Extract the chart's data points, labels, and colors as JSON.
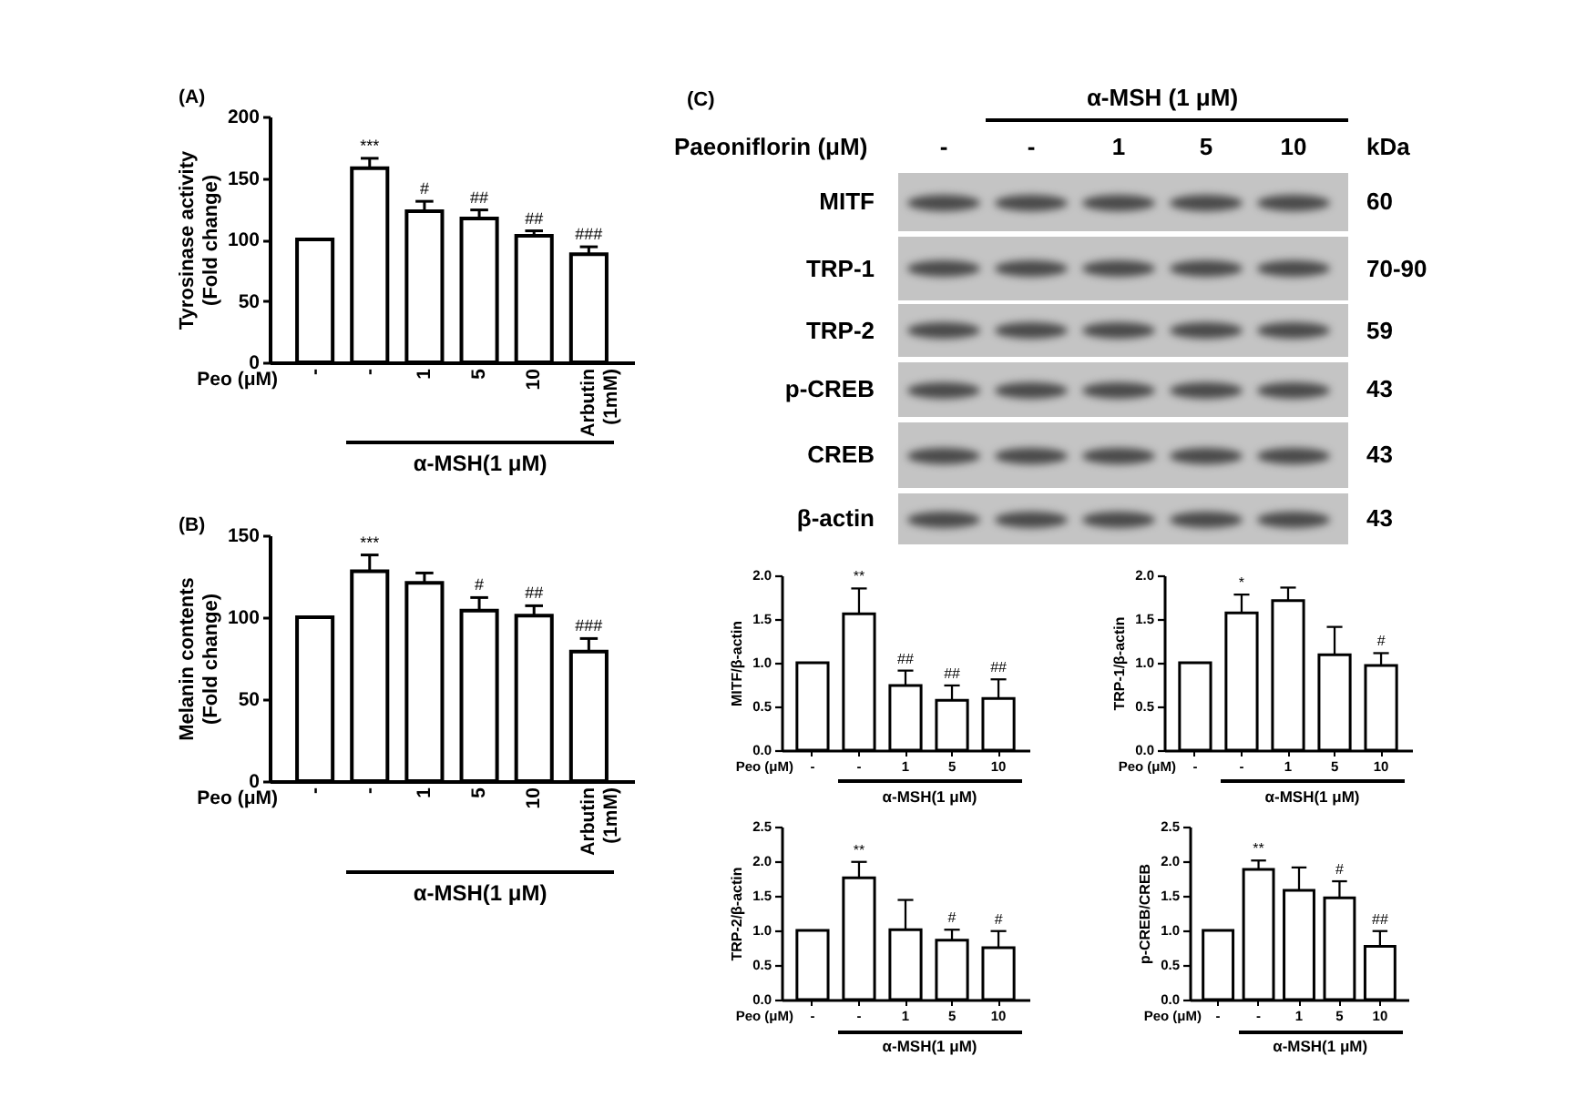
{
  "chart_data": [
    {
      "type": "bar",
      "title": "(A)",
      "ylabel": "Tyrosinase activity\n(Fold change)",
      "xlabel": "Peo (μM)",
      "annotations": [
        "α-MSH(1 μM)"
      ],
      "categories": [
        "-",
        "-",
        "1",
        "5",
        "10",
        "Arbutin\n(1mM)"
      ],
      "values": [
        100,
        158,
        123,
        117,
        103,
        88
      ],
      "errors": [
        null,
        [
          158,
          166
        ],
        [
          123,
          131
        ],
        [
          117,
          124
        ],
        [
          103,
          107
        ],
        [
          88,
          94
        ]
      ],
      "value_labels": [
        null,
        "***",
        "#",
        "##",
        "##",
        "###"
      ],
      "color": "#ffffff",
      "ylim": [
        0,
        200
      ],
      "yticks": [
        0,
        50,
        100,
        150,
        200
      ]
    },
    {
      "type": "bar",
      "title": "(B)",
      "ylabel": "Melanin contents\n(Fold change)",
      "xlabel": "Peo (μM)",
      "annotations": [
        "α-MSH(1 μM)"
      ],
      "categories": [
        "-",
        "-",
        "1",
        "5",
        "10",
        "Arbutin\n(1mM)"
      ],
      "values": [
        100,
        128,
        121,
        104,
        101,
        79
      ],
      "errors": [
        null,
        [
          128,
          138
        ],
        [
          121,
          127
        ],
        [
          104,
          112
        ],
        [
          101,
          107
        ],
        [
          79,
          87
        ]
      ],
      "value_labels": [
        null,
        "***",
        null,
        "#",
        "##",
        "###"
      ],
      "color": "#ffffff",
      "ylim": [
        0,
        150
      ],
      "yticks": [
        0,
        50,
        100,
        150
      ]
    },
    {
      "type": "other",
      "title": "(C)",
      "annotations": [
        "α-MSH (1 μM)",
        "Paeoniflorin (μM)",
        "-",
        "-",
        "1",
        "5",
        "10",
        "kDa",
        "MITF",
        "60",
        "TRP-1",
        "70-90",
        "TRP-2",
        "59",
        "p-CREB",
        "43",
        "CREB",
        "43",
        "β-actin",
        "43"
      ]
    },
    {
      "type": "bar",
      "ylabel": "MITF/β-actin",
      "xlabel": "Peo (μM)",
      "annotations": [
        "α-MSH(1 μM)"
      ],
      "categories": [
        "-",
        "-",
        "1",
        "5",
        "10"
      ],
      "values": [
        1.0,
        1.56,
        0.74,
        0.57,
        0.59
      ],
      "errors": [
        null,
        [
          1.56,
          1.85
        ],
        [
          0.74,
          0.91
        ],
        [
          0.57,
          0.74
        ],
        [
          0.59,
          0.81
        ]
      ],
      "value_labels": [
        null,
        "**",
        "##",
        "##",
        "##"
      ],
      "color": "#ffffff",
      "ylim": [
        0,
        2
      ],
      "yticks": [
        {
          "value": 0,
          "label": "0.0"
        },
        {
          "value": 0.5,
          "label": "0.5"
        },
        {
          "value": 1,
          "label": "1.0"
        },
        {
          "value": 1.5,
          "label": "1.5"
        },
        {
          "value": 2,
          "label": "2.0"
        }
      ]
    },
    {
      "type": "bar",
      "ylabel": "TRP-1/β-actin",
      "xlabel": "Peo (μM)",
      "annotations": [
        "α-MSH(1 μM)"
      ],
      "categories": [
        "-",
        "-",
        "1",
        "5",
        "10"
      ],
      "values": [
        1.0,
        1.57,
        1.71,
        1.09,
        0.97
      ],
      "errors": [
        null,
        [
          1.57,
          1.78
        ],
        [
          1.71,
          1.86
        ],
        [
          1.09,
          1.41
        ],
        [
          0.97,
          1.11
        ]
      ],
      "value_labels": [
        null,
        "*",
        null,
        null,
        "#"
      ],
      "color": "#ffffff",
      "ylim": [
        0,
        2
      ],
      "yticks": [
        {
          "value": 0,
          "label": "0.0"
        },
        {
          "value": 0.5,
          "label": "0.5"
        },
        {
          "value": 1,
          "label": "1.0"
        },
        {
          "value": 1.5,
          "label": "1.5"
        },
        {
          "value": 2,
          "label": "2.0"
        }
      ]
    },
    {
      "type": "bar",
      "ylabel": "TRP-2/β-actin",
      "xlabel": "Peo (μM)",
      "annotations": [
        "α-MSH(1 μM)"
      ],
      "categories": [
        "-",
        "-",
        "1",
        "5",
        "10"
      ],
      "values": [
        1.0,
        1.76,
        1.01,
        0.86,
        0.75
      ],
      "errors": [
        null,
        [
          1.76,
          1.99
        ],
        [
          1.01,
          1.44
        ],
        [
          0.86,
          1.01
        ],
        [
          0.75,
          0.99
        ]
      ],
      "value_labels": [
        null,
        "**",
        null,
        "#",
        "#"
      ],
      "color": "#ffffff",
      "ylim": [
        0,
        2.5
      ],
      "yticks": [
        {
          "value": 0,
          "label": "0.0"
        },
        {
          "value": 0.5,
          "label": "0.5"
        },
        {
          "value": 1,
          "label": "1.0"
        },
        {
          "value": 1.5,
          "label": "1.5"
        },
        {
          "value": 2,
          "label": "2.0"
        },
        {
          "value": 2.5,
          "label": "2.5"
        }
      ]
    },
    {
      "type": "bar",
      "ylabel": "p-CREB/CREB",
      "xlabel": "Peo (μM)",
      "annotations": [
        "α-MSH(1 μM)"
      ],
      "categories": [
        "-",
        "-",
        "1",
        "5",
        "10"
      ],
      "values": [
        1.0,
        1.88,
        1.58,
        1.47,
        0.77
      ],
      "errors": [
        null,
        [
          1.88,
          2.01
        ],
        [
          1.58,
          1.91
        ],
        [
          1.47,
          1.71
        ],
        [
          0.77,
          0.99
        ]
      ],
      "value_labels": [
        null,
        "**",
        null,
        "#",
        "##"
      ],
      "color": "#ffffff",
      "ylim": [
        0,
        2.5
      ],
      "yticks": [
        {
          "value": 0,
          "label": "0.0"
        },
        {
          "value": 0.5,
          "label": "0.5"
        },
        {
          "value": 1,
          "label": "1.0"
        },
        {
          "value": 1.5,
          "label": "1.5"
        },
        {
          "value": 2,
          "label": "2.0"
        },
        {
          "value": 2.5,
          "label": "2.5"
        }
      ]
    }
  ]
}
